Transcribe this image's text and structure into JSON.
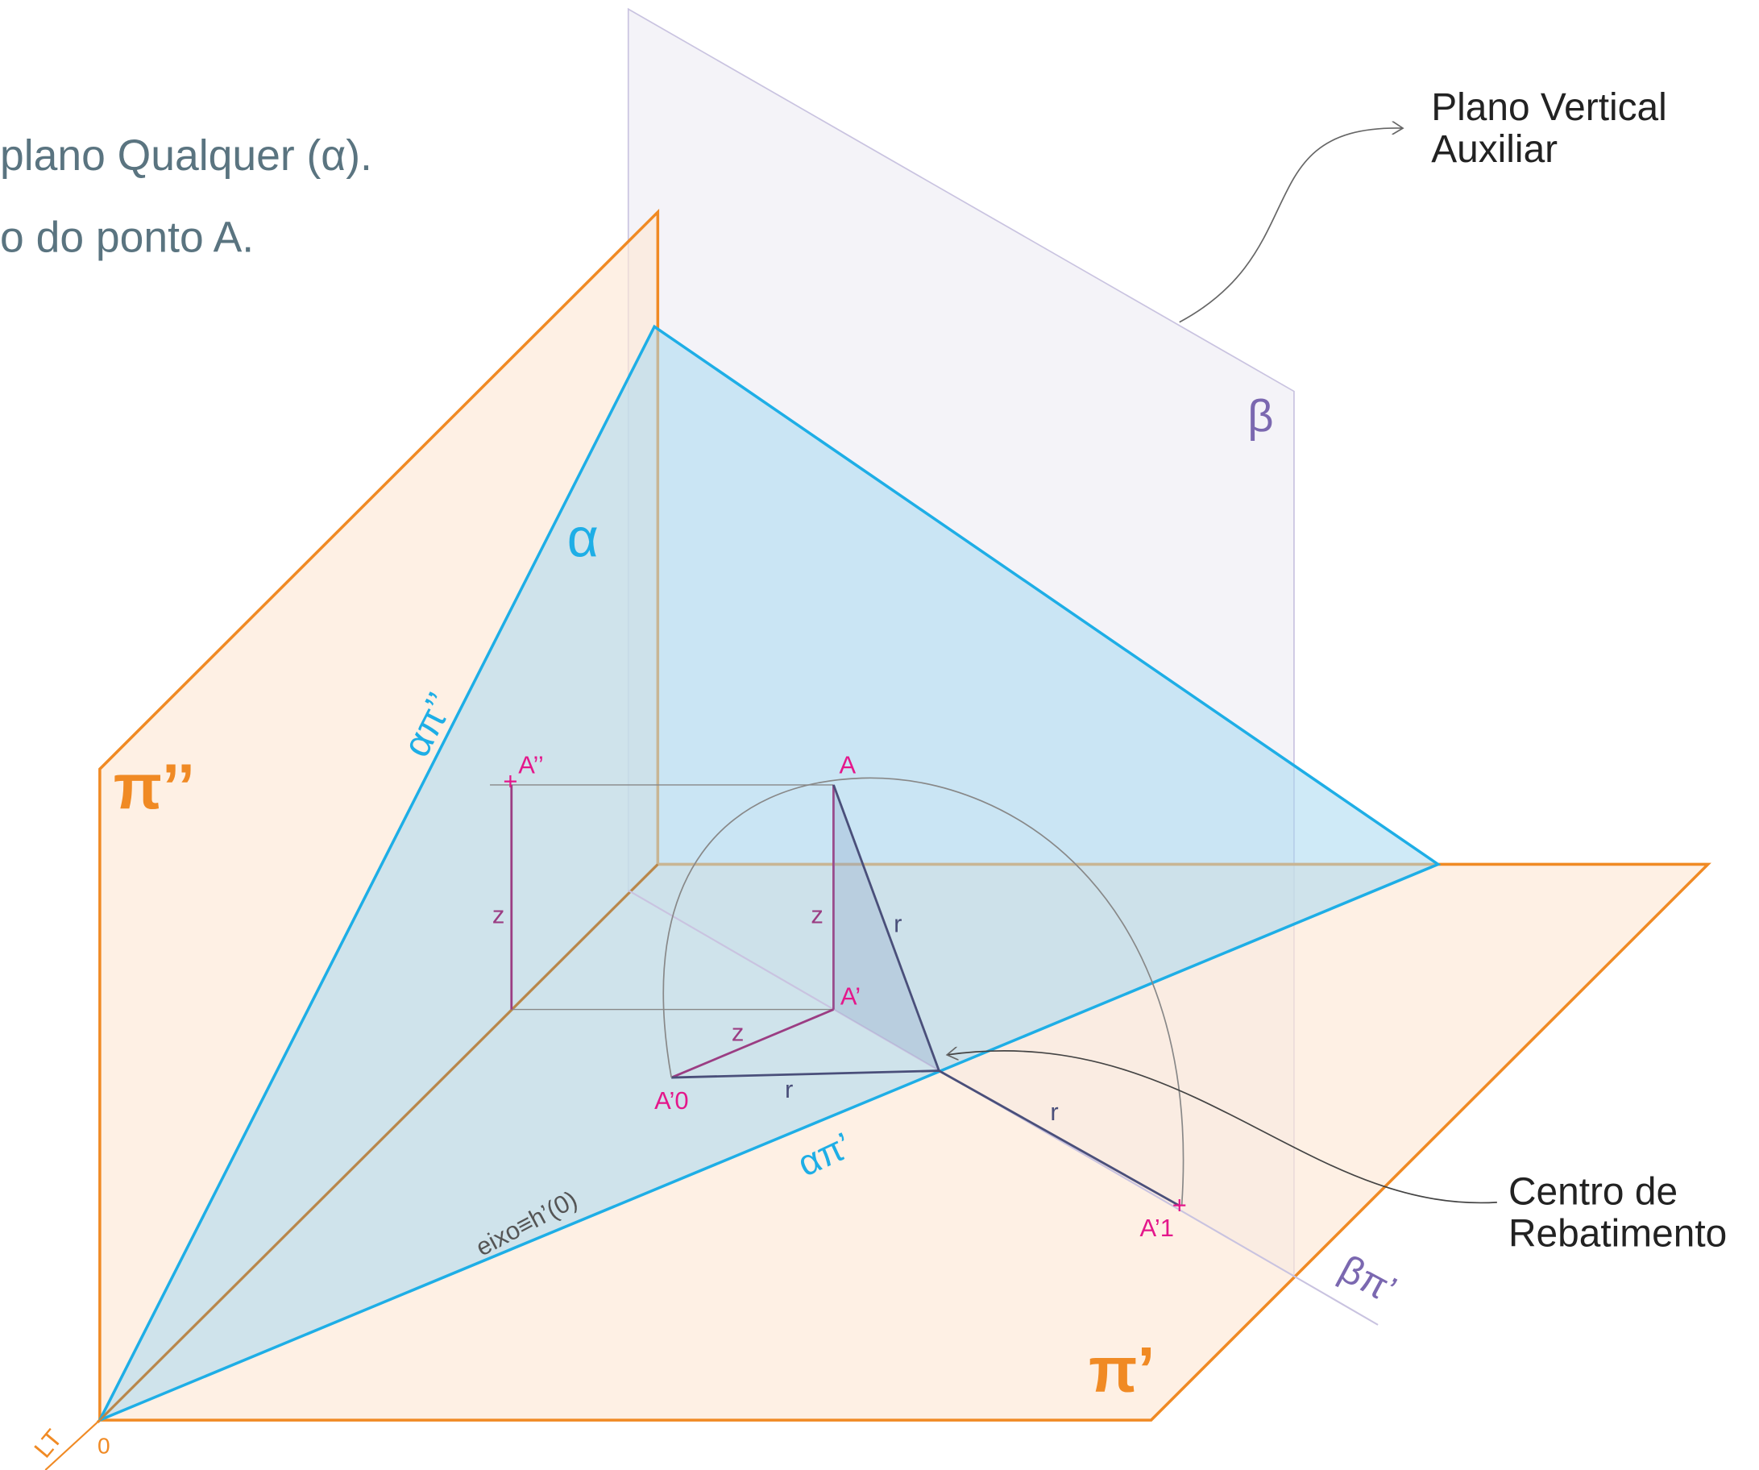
{
  "header": {
    "line1": "plano Qualquer (α).",
    "line2": "o do ponto A."
  },
  "callouts": {
    "auxiliary_plane": [
      "Plano Vertical",
      "Auxiliar"
    ],
    "center": [
      "Centro de",
      "Rebatimento"
    ]
  },
  "labels": {
    "beta": "β",
    "alpha": "α",
    "alpha_trace_v": "απ’’",
    "pi_v": "π’’",
    "pi_h": "π’",
    "alpha_trace_h": "απ’",
    "beta_trace_h": "βπ’",
    "axis": "eixo≡h’(0)",
    "origin": "0",
    "lt": "LT",
    "A2": "A’’",
    "A": "A",
    "A1": "A’",
    "A0": "A’0",
    "A1r": "A’1",
    "z": "z",
    "r": "r"
  }
}
